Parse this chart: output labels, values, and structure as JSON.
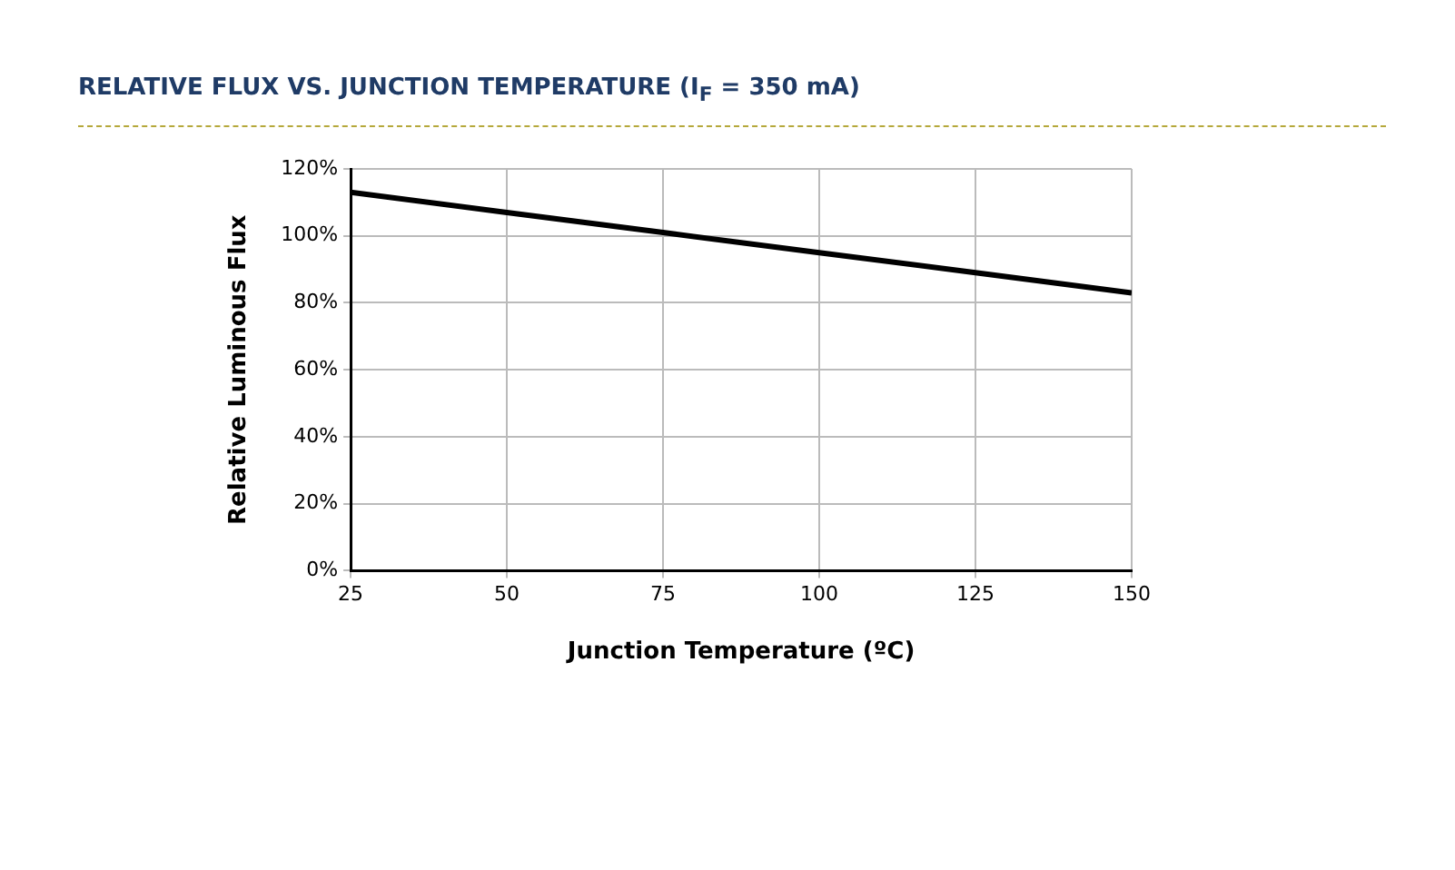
{
  "chart_data": {
    "type": "line",
    "title": "RELATIVE FLUX VS. JUNCTION TEMPERATURE (I$_{F}$ = 350 mA)",
    "xlabel": "Junction Temperature (ºC)",
    "ylabel": "Relative Luminous Flux",
    "x": [
      25,
      50,
      75,
      100,
      125,
      150
    ],
    "series": [
      {
        "color": "#000000",
        "values": [
          113,
          107,
          101,
          95,
          89,
          83
        ]
      }
    ],
    "xlim": [
      25,
      150
    ],
    "xticks": [
      25,
      50,
      75,
      100,
      125,
      150
    ],
    "ylim": [
      0,
      120
    ],
    "yticks": [
      {
        "value": 0,
        "label": "0%"
      },
      {
        "value": 20,
        "label": "20%"
      },
      {
        "value": 40,
        "label": "40%"
      },
      {
        "value": 60,
        "label": "60%"
      },
      {
        "value": 80,
        "label": "80%"
      },
      {
        "value": 100,
        "label": "100%"
      },
      {
        "value": 120,
        "label": "120%"
      }
    ],
    "grid": true,
    "legend": false,
    "marker": "none",
    "line_style": "solid"
  }
}
